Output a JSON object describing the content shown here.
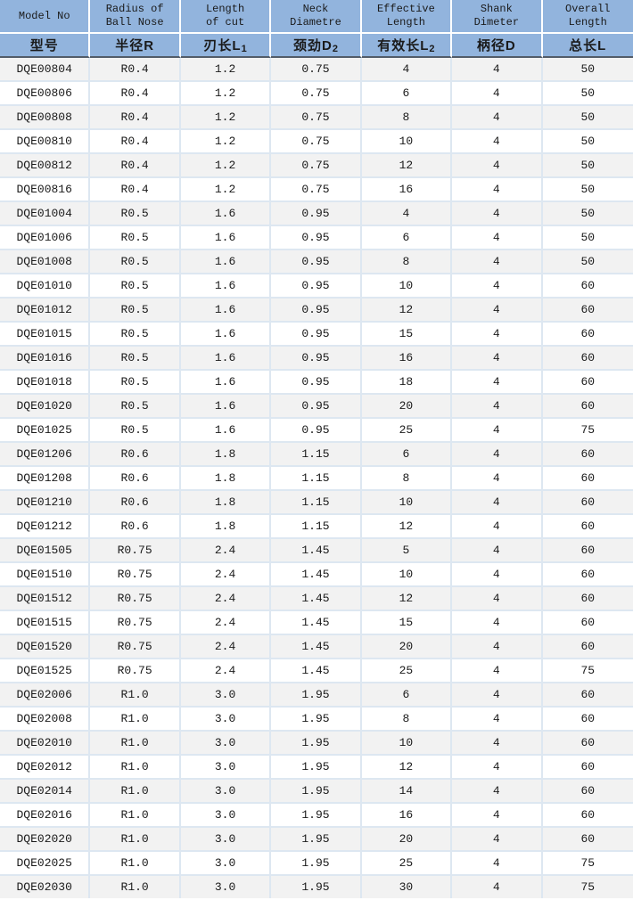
{
  "colors": {
    "header_bg": "#92b4dd",
    "header_separator": "#ffffff",
    "header_bottom_rule": "#525c68",
    "row_bg": "#ffffff",
    "row_alt_bg": "#f2f2f2",
    "grid_line": "#dde7f1",
    "text": "#1a1a1a"
  },
  "chart_data": {
    "type": "table",
    "columns": [
      {
        "en1": "Model No",
        "en2": "",
        "cn": "型号",
        "sub": ""
      },
      {
        "en1": "Radius of",
        "en2": "Ball Nose",
        "cn": "半径R",
        "sub": ""
      },
      {
        "en1": "Length",
        "en2": "of cut",
        "cn": "刃长L",
        "sub": "1"
      },
      {
        "en1": "Neck",
        "en2": "Diametre",
        "cn": "颈劲D",
        "sub": "2"
      },
      {
        "en1": "Effective",
        "en2": "Length",
        "cn": "有效长L",
        "sub": "2"
      },
      {
        "en1": "Shank",
        "en2": "Dimeter",
        "cn": "柄径D",
        "sub": ""
      },
      {
        "en1": "Overall",
        "en2": "Length",
        "cn": "总长L",
        "sub": ""
      }
    ],
    "rows": [
      [
        "DQE00804",
        "R0.4",
        "1.2",
        "0.75",
        "4",
        "4",
        "50"
      ],
      [
        "DQE00806",
        "R0.4",
        "1.2",
        "0.75",
        "6",
        "4",
        "50"
      ],
      [
        "DQE00808",
        "R0.4",
        "1.2",
        "0.75",
        "8",
        "4",
        "50"
      ],
      [
        "DQE00810",
        "R0.4",
        "1.2",
        "0.75",
        "10",
        "4",
        "50"
      ],
      [
        "DQE00812",
        "R0.4",
        "1.2",
        "0.75",
        "12",
        "4",
        "50"
      ],
      [
        "DQE00816",
        "R0.4",
        "1.2",
        "0.75",
        "16",
        "4",
        "50"
      ],
      [
        "DQE01004",
        "R0.5",
        "1.6",
        "0.95",
        "4",
        "4",
        "50"
      ],
      [
        "DQE01006",
        "R0.5",
        "1.6",
        "0.95",
        "6",
        "4",
        "50"
      ],
      [
        "DQE01008",
        "R0.5",
        "1.6",
        "0.95",
        "8",
        "4",
        "50"
      ],
      [
        "DQE01010",
        "R0.5",
        "1.6",
        "0.95",
        "10",
        "4",
        "60"
      ],
      [
        "DQE01012",
        "R0.5",
        "1.6",
        "0.95",
        "12",
        "4",
        "60"
      ],
      [
        "DQE01015",
        "R0.5",
        "1.6",
        "0.95",
        "15",
        "4",
        "60"
      ],
      [
        "DQE01016",
        "R0.5",
        "1.6",
        "0.95",
        "16",
        "4",
        "60"
      ],
      [
        "DQE01018",
        "R0.5",
        "1.6",
        "0.95",
        "18",
        "4",
        "60"
      ],
      [
        "DQE01020",
        "R0.5",
        "1.6",
        "0.95",
        "20",
        "4",
        "60"
      ],
      [
        "DQE01025",
        "R0.5",
        "1.6",
        "0.95",
        "25",
        "4",
        "75"
      ],
      [
        "DQE01206",
        "R0.6",
        "1.8",
        "1.15",
        "6",
        "4",
        "60"
      ],
      [
        "DQE01208",
        "R0.6",
        "1.8",
        "1.15",
        "8",
        "4",
        "60"
      ],
      [
        "DQE01210",
        "R0.6",
        "1.8",
        "1.15",
        "10",
        "4",
        "60"
      ],
      [
        "DQE01212",
        "R0.6",
        "1.8",
        "1.15",
        "12",
        "4",
        "60"
      ],
      [
        "DQE01505",
        "R0.75",
        "2.4",
        "1.45",
        "5",
        "4",
        "60"
      ],
      [
        "DQE01510",
        "R0.75",
        "2.4",
        "1.45",
        "10",
        "4",
        "60"
      ],
      [
        "DQE01512",
        "R0.75",
        "2.4",
        "1.45",
        "12",
        "4",
        "60"
      ],
      [
        "DQE01515",
        "R0.75",
        "2.4",
        "1.45",
        "15",
        "4",
        "60"
      ],
      [
        "DQE01520",
        "R0.75",
        "2.4",
        "1.45",
        "20",
        "4",
        "60"
      ],
      [
        "DQE01525",
        "R0.75",
        "2.4",
        "1.45",
        "25",
        "4",
        "75"
      ],
      [
        "DQE02006",
        "R1.0",
        "3.0",
        "1.95",
        "6",
        "4",
        "60"
      ],
      [
        "DQE02008",
        "R1.0",
        "3.0",
        "1.95",
        "8",
        "4",
        "60"
      ],
      [
        "DQE02010",
        "R1.0",
        "3.0",
        "1.95",
        "10",
        "4",
        "60"
      ],
      [
        "DQE02012",
        "R1.0",
        "3.0",
        "1.95",
        "12",
        "4",
        "60"
      ],
      [
        "DQE02014",
        "R1.0",
        "3.0",
        "1.95",
        "14",
        "4",
        "60"
      ],
      [
        "DQE02016",
        "R1.0",
        "3.0",
        "1.95",
        "16",
        "4",
        "60"
      ],
      [
        "DQE02020",
        "R1.0",
        "3.0",
        "1.95",
        "20",
        "4",
        "60"
      ],
      [
        "DQE02025",
        "R1.0",
        "3.0",
        "1.95",
        "25",
        "4",
        "75"
      ],
      [
        "DQE02030",
        "R1.0",
        "3.0",
        "1.95",
        "30",
        "4",
        "75"
      ]
    ]
  }
}
